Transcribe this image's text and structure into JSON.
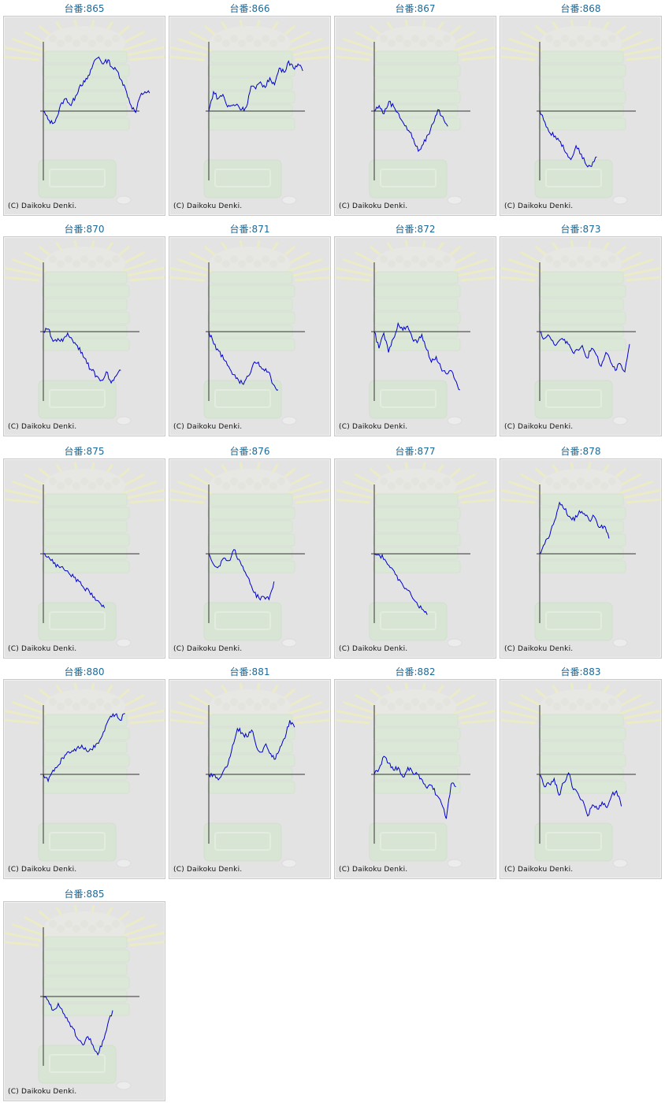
{
  "chart_data": [
    {
      "type": "line",
      "title": "台番:865",
      "credit": "(C) Daikoku Denki.",
      "values": [
        0,
        -12,
        -18,
        -8,
        12,
        18,
        8,
        22,
        38,
        42,
        52,
        72,
        78,
        68,
        74,
        62,
        58,
        44,
        28,
        8,
        -2,
        22,
        28,
        26
      ]
    },
    {
      "type": "line",
      "title": "台番:866",
      "credit": "(C) Daikoku Denki.",
      "values": [
        0,
        28,
        18,
        24,
        6,
        8,
        10,
        2,
        6,
        36,
        32,
        42,
        34,
        48,
        38,
        62,
        56,
        72,
        62,
        68,
        58
      ]
    },
    {
      "type": "line",
      "title": "台番:867",
      "credit": "(C) Daikoku Denki.",
      "values": [
        0,
        8,
        -4,
        14,
        6,
        -4,
        -18,
        -28,
        -40,
        -58,
        -48,
        -34,
        -18,
        2,
        -8,
        -22
      ]
    },
    {
      "type": "line",
      "title": "台番:868",
      "credit": "(C) Daikoku Denki.",
      "values": [
        0,
        -16,
        -32,
        -36,
        -44,
        -60,
        -70,
        -50,
        -62,
        -78,
        -80,
        -66
      ]
    },
    {
      "type": "line",
      "title": "台番:870",
      "credit": "(C) Daikoku Denki.",
      "values": [
        0,
        4,
        -14,
        -10,
        -14,
        -2,
        -12,
        -20,
        -30,
        -46,
        -56,
        -64,
        -70,
        -58,
        -74,
        -64,
        -56
      ]
    },
    {
      "type": "line",
      "title": "台番:871",
      "credit": "(C) Daikoku Denki.",
      "values": [
        0,
        -18,
        -28,
        -40,
        -50,
        -62,
        -70,
        -76,
        -64,
        -46,
        -44,
        -54,
        -58,
        -76,
        -84
      ]
    },
    {
      "type": "line",
      "title": "台番:872",
      "credit": "(C) Daikoku Denki.",
      "values": [
        0,
        -24,
        -2,
        -30,
        -10,
        12,
        2,
        8,
        -10,
        -16,
        -4,
        -26,
        -44,
        -36,
        -52,
        -60,
        -56,
        -70,
        -84
      ]
    },
    {
      "type": "line",
      "title": "台番:873",
      "credit": "(C) Daikoku Denki.",
      "values": [
        0,
        -10,
        -6,
        -18,
        -14,
        -12,
        -18,
        -30,
        -26,
        -20,
        -38,
        -24,
        -34,
        -50,
        -30,
        -44,
        -56,
        -46,
        -58,
        -18
      ]
    },
    {
      "type": "line",
      "title": "台番:875",
      "credit": "(C) Daikoku Denki.",
      "values": [
        0,
        -4,
        -14,
        -18,
        -22,
        -28,
        -34,
        -40,
        -50,
        -54,
        -62,
        -70,
        -78
      ]
    },
    {
      "type": "line",
      "title": "台番:876",
      "credit": "(C) Daikoku Denki.",
      "values": [
        0,
        -16,
        -18,
        -6,
        -10,
        6,
        -8,
        -24,
        -36,
        -56,
        -64,
        -62,
        -66,
        -40
      ]
    },
    {
      "type": "line",
      "title": "台番:877",
      "credit": "(C) Daikoku Denki.",
      "values": [
        0,
        -2,
        -8,
        -20,
        -30,
        -40,
        -50,
        -60,
        -70,
        -80,
        -88
      ]
    },
    {
      "type": "line",
      "title": "台番:878",
      "credit": "(C) Daikoku Denki.",
      "values": [
        0,
        14,
        26,
        48,
        74,
        64,
        54,
        48,
        62,
        58,
        48,
        54,
        38,
        40,
        22
      ]
    },
    {
      "type": "line",
      "title": "台番:880",
      "credit": "(C) Daikoku Denki.",
      "values": [
        0,
        -10,
        6,
        12,
        24,
        32,
        34,
        38,
        42,
        34,
        36,
        44,
        52,
        70,
        84,
        86,
        78,
        88
      ]
    },
    {
      "type": "line",
      "title": "台番:881",
      "credit": "(C) Daikoku Denki.",
      "values": [
        0,
        0,
        -8,
        4,
        14,
        42,
        66,
        60,
        54,
        64,
        40,
        32,
        44,
        30,
        22,
        40,
        52,
        78,
        68
      ]
    },
    {
      "type": "line",
      "title": "台番:882",
      "credit": "(C) Daikoku Denki.",
      "values": [
        0,
        8,
        26,
        16,
        6,
        10,
        -4,
        10,
        2,
        0,
        -8,
        -20,
        -16,
        -30,
        -42,
        -64,
        -14,
        -18
      ]
    },
    {
      "type": "line",
      "title": "台番:883",
      "credit": "(C) Daikoku Denki.",
      "values": [
        0,
        -18,
        -14,
        -6,
        -30,
        -12,
        2,
        -22,
        -28,
        -38,
        -60,
        -44,
        -50,
        -40,
        -48,
        -30,
        -24,
        -46
      ]
    },
    {
      "type": "line",
      "title": "台番:885",
      "credit": "(C) Daikoku Denki.",
      "values": [
        0,
        -6,
        -20,
        -10,
        -24,
        -36,
        -46,
        -62,
        -70,
        -58,
        -70,
        -84,
        -64,
        -40,
        -20
      ]
    }
  ]
}
